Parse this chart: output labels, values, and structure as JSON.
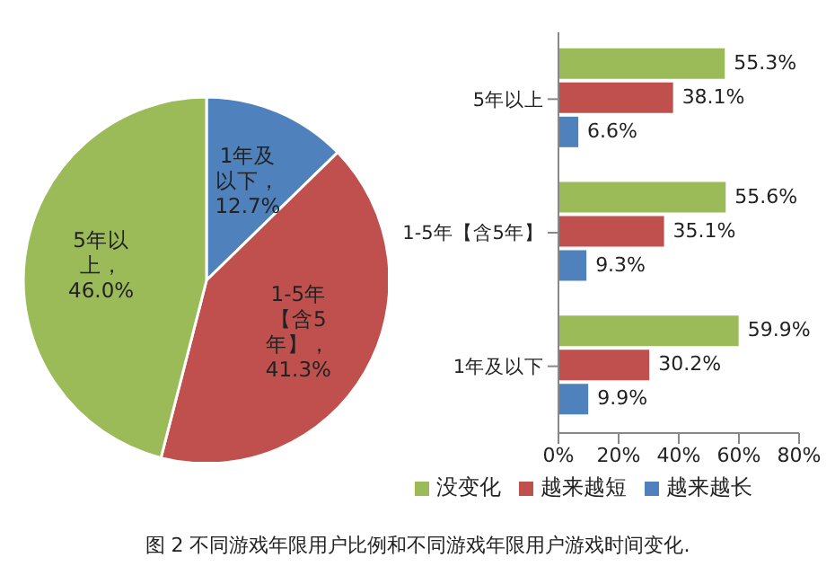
{
  "chart_data": [
    {
      "type": "pie",
      "categories": [
        "1年及以下",
        "1-5年【含5年】",
        "5年以上"
      ],
      "values": [
        12.7,
        41.3,
        46.0
      ],
      "colors": [
        "#4f81bd",
        "#c0504d",
        "#9bbb59"
      ],
      "value_labels": [
        "，12.7%",
        "，41.3%",
        "，46.0%"
      ],
      "legend": false,
      "annotations": [
        "图 2 不同游戏年限用户比例和不同游戏年限用户游戏时间变化."
      ]
    },
    {
      "type": "bar",
      "orientation": "horizontal",
      "categories": [
        "5年以上",
        "1-5年【含5年】",
        "1年及以下"
      ],
      "series": [
        {
          "name": "没变化",
          "color": "#9bbb59",
          "values": [
            55.3,
            55.6,
            59.9
          ],
          "value_labels": [
            "55.3%",
            "55.6%",
            "59.9%"
          ]
        },
        {
          "name": "越来越短",
          "color": "#c0504d",
          "values": [
            38.1,
            35.1,
            30.2
          ],
          "value_labels": [
            "38.1%",
            "35.1%",
            "30.2%"
          ]
        },
        {
          "name": "越来越长",
          "color": "#4f81bd",
          "values": [
            6.6,
            9.3,
            9.9
          ],
          "value_labels": [
            "6.6%",
            "9.3%",
            "9.9%"
          ]
        }
      ],
      "xlim": [
        0,
        80
      ],
      "xticks": [
        {
          "value": 0,
          "label": "0%"
        },
        {
          "value": 20,
          "label": "20%"
        },
        {
          "value": 40,
          "label": "40%"
        },
        {
          "value": 60,
          "label": "60%"
        },
        {
          "value": 80,
          "label": "80%"
        }
      ],
      "grid": false,
      "legend": "bottom"
    }
  ]
}
